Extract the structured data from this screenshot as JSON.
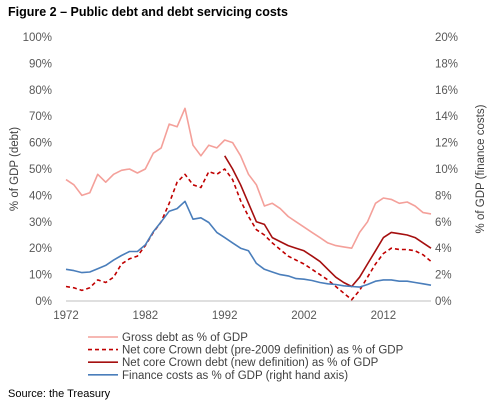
{
  "figure_title": "Figure 2 – Public debt and debt servicing costs",
  "source": "Source: the Treasury",
  "chart_data": {
    "type": "line",
    "ylabel": "% of GDP (debt)",
    "y2label": "% of GDP (finance costs)",
    "xlim": [
      1972,
      2018
    ],
    "ylim": [
      0,
      100
    ],
    "y2lim": [
      0,
      20
    ],
    "xticks": [
      "1972",
      "1982",
      "1992",
      "2002",
      "2012"
    ],
    "yticks": [
      "0%",
      "10%",
      "20%",
      "30%",
      "40%",
      "50%",
      "60%",
      "70%",
      "80%",
      "90%",
      "100%"
    ],
    "y2ticks": [
      "0%",
      "2%",
      "4%",
      "6%",
      "8%",
      "10%",
      "12%",
      "14%",
      "16%",
      "18%",
      "20%"
    ],
    "grid": false,
    "legend_position": "bottom",
    "series": [
      {
        "name": "Gross debt as % of GDP",
        "color": "#f4a09a",
        "style": "solid",
        "axis": "left",
        "points": [
          [
            1972,
            46
          ],
          [
            1973,
            44
          ],
          [
            1974,
            40
          ],
          [
            1975,
            41
          ],
          [
            1976,
            48
          ],
          [
            1977,
            45
          ],
          [
            1978,
            48
          ],
          [
            1979,
            49.5
          ],
          [
            1980,
            50
          ],
          [
            1981,
            48.5
          ],
          [
            1982,
            50
          ],
          [
            1983,
            56
          ],
          [
            1984,
            58
          ],
          [
            1985,
            67
          ],
          [
            1986,
            66
          ],
          [
            1987,
            73
          ],
          [
            1988,
            59
          ],
          [
            1989,
            55
          ],
          [
            1990,
            59
          ],
          [
            1991,
            58
          ],
          [
            1992,
            61
          ],
          [
            1993,
            60
          ],
          [
            1994,
            55
          ],
          [
            1995,
            48
          ],
          [
            1996,
            44
          ],
          [
            1997,
            36
          ],
          [
            1998,
            37
          ],
          [
            1999,
            35
          ],
          [
            2000,
            32
          ],
          [
            2001,
            30
          ],
          [
            2002,
            28
          ],
          [
            2003,
            26
          ],
          [
            2004,
            24
          ],
          [
            2005,
            22
          ],
          [
            2006,
            21
          ],
          [
            2007,
            20.5
          ],
          [
            2008,
            20
          ],
          [
            2009,
            26
          ],
          [
            2010,
            30
          ],
          [
            2011,
            37
          ],
          [
            2012,
            39
          ],
          [
            2013,
            38.5
          ],
          [
            2014,
            37
          ],
          [
            2015,
            37.5
          ],
          [
            2016,
            36
          ],
          [
            2017,
            33.5
          ],
          [
            2018,
            33
          ]
        ]
      },
      {
        "name": "Net core Crown debt (pre-2009 definition) as % of GDP",
        "color": "#c00000",
        "style": "dashed",
        "axis": "left",
        "points": [
          [
            1972,
            5.5
          ],
          [
            1973,
            5
          ],
          [
            1974,
            4
          ],
          [
            1975,
            5
          ],
          [
            1976,
            8
          ],
          [
            1977,
            7
          ],
          [
            1978,
            9
          ],
          [
            1979,
            14
          ],
          [
            1980,
            16
          ],
          [
            1981,
            17
          ],
          [
            1982,
            21
          ],
          [
            1983,
            26
          ],
          [
            1984,
            30
          ],
          [
            1985,
            37
          ],
          [
            1986,
            45
          ],
          [
            1987,
            48
          ],
          [
            1988,
            44
          ],
          [
            1989,
            43
          ],
          [
            1990,
            49
          ],
          [
            1991,
            48
          ],
          [
            1992,
            50
          ],
          [
            1993,
            46
          ],
          [
            1994,
            38
          ],
          [
            1995,
            32
          ],
          [
            1996,
            27
          ],
          [
            1997,
            25
          ],
          [
            1998,
            22
          ],
          [
            1999,
            19.5
          ],
          [
            2000,
            17
          ],
          [
            2001,
            15.5
          ],
          [
            2002,
            14
          ],
          [
            2003,
            12
          ],
          [
            2004,
            10
          ],
          [
            2005,
            8
          ],
          [
            2006,
            5.5
          ],
          [
            2007,
            3
          ],
          [
            2008,
            0.5
          ],
          [
            2009,
            4
          ],
          [
            2010,
            9
          ],
          [
            2011,
            14
          ],
          [
            2012,
            18
          ],
          [
            2013,
            20
          ],
          [
            2014,
            19.5
          ],
          [
            2015,
            19.5
          ],
          [
            2016,
            19
          ],
          [
            2017,
            17.5
          ],
          [
            2018,
            15
          ]
        ]
      },
      {
        "name": "Net core Crown debt (new definition) as % of GDP",
        "color": "#a50f0f",
        "style": "solid",
        "axis": "left",
        "points": [
          [
            1992,
            55
          ],
          [
            1993,
            50
          ],
          [
            1994,
            44
          ],
          [
            1995,
            37
          ],
          [
            1996,
            30
          ],
          [
            1997,
            29
          ],
          [
            1998,
            24
          ],
          [
            1999,
            22.5
          ],
          [
            2000,
            21
          ],
          [
            2001,
            20
          ],
          [
            2002,
            19
          ],
          [
            2003,
            17
          ],
          [
            2004,
            15
          ],
          [
            2005,
            12
          ],
          [
            2006,
            9
          ],
          [
            2007,
            7
          ],
          [
            2008,
            5.5
          ],
          [
            2009,
            9
          ],
          [
            2010,
            14
          ],
          [
            2011,
            19
          ],
          [
            2012,
            24
          ],
          [
            2013,
            26
          ],
          [
            2014,
            25.5
          ],
          [
            2015,
            25
          ],
          [
            2016,
            24
          ],
          [
            2017,
            22
          ],
          [
            2018,
            20
          ]
        ]
      },
      {
        "name": "Finance costs as % of GDP (right hand axis)",
        "color": "#4a7ebb",
        "style": "solid",
        "axis": "right",
        "points": [
          [
            1972,
            2.4
          ],
          [
            1973,
            2.3
          ],
          [
            1974,
            2.15
          ],
          [
            1975,
            2.2
          ],
          [
            1976,
            2.45
          ],
          [
            1977,
            2.7
          ],
          [
            1978,
            3.1
          ],
          [
            1979,
            3.45
          ],
          [
            1980,
            3.75
          ],
          [
            1981,
            3.75
          ],
          [
            1982,
            4.25
          ],
          [
            1983,
            5.25
          ],
          [
            1984,
            6.0
          ],
          [
            1985,
            6.8
          ],
          [
            1986,
            7.0
          ],
          [
            1987,
            7.55
          ],
          [
            1988,
            6.2
          ],
          [
            1989,
            6.3
          ],
          [
            1990,
            5.95
          ],
          [
            1991,
            5.2
          ],
          [
            1992,
            4.8
          ],
          [
            1993,
            4.4
          ],
          [
            1994,
            4.0
          ],
          [
            1995,
            3.8
          ],
          [
            1996,
            2.85
          ],
          [
            1997,
            2.4
          ],
          [
            1998,
            2.2
          ],
          [
            1999,
            2.0
          ],
          [
            2000,
            1.9
          ],
          [
            2001,
            1.7
          ],
          [
            2002,
            1.65
          ],
          [
            2003,
            1.55
          ],
          [
            2004,
            1.4
          ],
          [
            2005,
            1.3
          ],
          [
            2006,
            1.25
          ],
          [
            2007,
            1.15
          ],
          [
            2008,
            1.1
          ],
          [
            2009,
            1.05
          ],
          [
            2010,
            1.25
          ],
          [
            2011,
            1.5
          ],
          [
            2012,
            1.6
          ],
          [
            2013,
            1.6
          ],
          [
            2014,
            1.5
          ],
          [
            2015,
            1.5
          ],
          [
            2016,
            1.4
          ],
          [
            2017,
            1.3
          ],
          [
            2018,
            1.2
          ]
        ]
      }
    ]
  }
}
